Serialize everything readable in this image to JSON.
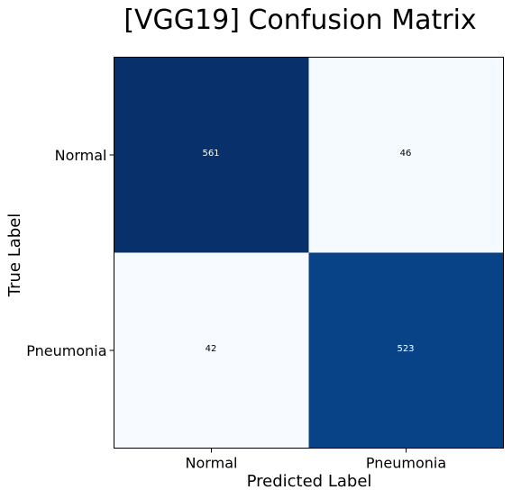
{
  "chart_data": {
    "type": "heatmap",
    "title": "[VGG19] Confusion Matrix",
    "xlabel": "Predicted Label",
    "ylabel": "True Label",
    "x_categories": [
      "Normal",
      "Pneumonia"
    ],
    "y_categories": [
      "Normal",
      "Pneumonia"
    ],
    "values": [
      [
        561,
        46
      ],
      [
        42,
        523
      ]
    ],
    "colormap": "Blues",
    "colors": {
      "low": "#f7fbff",
      "high": "#08306b",
      "text_on_dark": "#ffffff",
      "text_on_light": "#000000"
    },
    "grid": false
  }
}
